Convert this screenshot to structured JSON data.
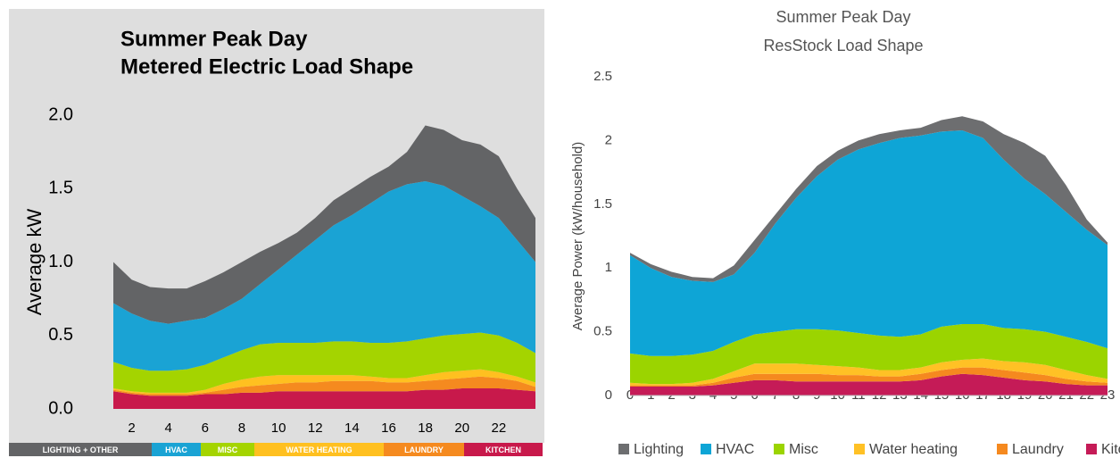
{
  "chart_data": [
    {
      "type": "stacked_area",
      "title": "Summer Peak Day",
      "subtitle": "Metered Electric Load Shape",
      "ylabel": "Average kW",
      "x": [
        1,
        2,
        3,
        4,
        5,
        6,
        7,
        8,
        9,
        10,
        11,
        12,
        13,
        14,
        15,
        16,
        17,
        18,
        19,
        20,
        21,
        22,
        23,
        24
      ],
      "xlim": [
        1,
        24
      ],
      "xticks": [
        2,
        4,
        6,
        8,
        10,
        12,
        14,
        16,
        18,
        20,
        22
      ],
      "ylim": [
        0,
        2
      ],
      "yticks": [
        {
          "value": 0,
          "label": "0.0"
        },
        {
          "value": 0.5,
          "label": "0.5"
        },
        {
          "value": 1,
          "label": "1.0"
        },
        {
          "value": 1.5,
          "label": "1.5"
        },
        {
          "value": 2,
          "label": "2.0"
        }
      ],
      "grid": false,
      "legend": "bottom",
      "legend_style": "band",
      "series": [
        {
          "name": "LIGHTING + OTHER",
          "color": "#636466",
          "values": [
            0.28,
            0.23,
            0.23,
            0.24,
            0.22,
            0.25,
            0.25,
            0.25,
            0.22,
            0.18,
            0.15,
            0.15,
            0.17,
            0.18,
            0.18,
            0.17,
            0.22,
            0.38,
            0.38,
            0.38,
            0.42,
            0.42,
            0.35,
            0.3
          ]
        },
        {
          "name": "HVAC",
          "color": "#1aa3d4",
          "values": [
            0.4,
            0.37,
            0.34,
            0.32,
            0.33,
            0.32,
            0.33,
            0.35,
            0.41,
            0.5,
            0.6,
            0.7,
            0.79,
            0.86,
            0.95,
            1.03,
            1.07,
            1.07,
            1.02,
            0.94,
            0.86,
            0.8,
            0.7,
            0.62
          ]
        },
        {
          "name": "MISC",
          "color": "#a4d400",
          "values": [
            0.18,
            0.16,
            0.15,
            0.15,
            0.16,
            0.17,
            0.18,
            0.2,
            0.22,
            0.22,
            0.22,
            0.22,
            0.23,
            0.23,
            0.23,
            0.24,
            0.25,
            0.25,
            0.25,
            0.25,
            0.25,
            0.25,
            0.23,
            0.2
          ]
        },
        {
          "name": "WATER HEATING",
          "color": "#ffc020",
          "values": [
            0.01,
            0.01,
            0.01,
            0.01,
            0.01,
            0.02,
            0.04,
            0.05,
            0.06,
            0.06,
            0.05,
            0.05,
            0.04,
            0.04,
            0.03,
            0.03,
            0.03,
            0.04,
            0.05,
            0.05,
            0.05,
            0.04,
            0.03,
            0.03
          ]
        },
        {
          "name": "LAUNDRY",
          "color": "#f58a1f",
          "values": [
            0.01,
            0.01,
            0.01,
            0.01,
            0.01,
            0.01,
            0.03,
            0.04,
            0.05,
            0.05,
            0.06,
            0.06,
            0.07,
            0.07,
            0.07,
            0.06,
            0.06,
            0.06,
            0.07,
            0.07,
            0.08,
            0.07,
            0.06,
            0.03
          ]
        },
        {
          "name": "KITCHEN",
          "color": "#c8194b",
          "values": [
            0.12,
            0.1,
            0.09,
            0.09,
            0.09,
            0.1,
            0.1,
            0.11,
            0.11,
            0.12,
            0.12,
            0.12,
            0.12,
            0.12,
            0.12,
            0.12,
            0.12,
            0.13,
            0.13,
            0.14,
            0.14,
            0.14,
            0.13,
            0.12
          ]
        }
      ]
    },
    {
      "type": "stacked_area",
      "title": "Summer Peak Day",
      "subtitle": "ResStock Load Shape",
      "ylabel": "Average Power (kW/household)",
      "x": [
        0,
        1,
        2,
        3,
        4,
        5,
        6,
        7,
        8,
        9,
        10,
        11,
        12,
        13,
        14,
        15,
        16,
        17,
        18,
        19,
        20,
        21,
        22,
        23
      ],
      "xlim": [
        0,
        23
      ],
      "xticks": [
        0,
        1,
        2,
        3,
        4,
        5,
        6,
        7,
        8,
        9,
        10,
        11,
        12,
        13,
        14,
        15,
        16,
        17,
        18,
        19,
        20,
        21,
        22,
        23
      ],
      "ylim": [
        0,
        2.5
      ],
      "yticks": [
        0,
        0.5,
        1,
        1.5,
        2,
        2.5
      ],
      "grid": false,
      "legend": "bottom",
      "legend_style": "swatch",
      "series": [
        {
          "name": "Lighting",
          "color": "#6d6e70",
          "values": [
            0.02,
            0.03,
            0.04,
            0.03,
            0.03,
            0.07,
            0.1,
            0.07,
            0.07,
            0.08,
            0.07,
            0.07,
            0.07,
            0.06,
            0.06,
            0.09,
            0.11,
            0.13,
            0.2,
            0.28,
            0.3,
            0.21,
            0.08,
            0.02
          ]
        },
        {
          "name": "HVAC",
          "color": "#0ea5d6",
          "values": [
            0.77,
            0.69,
            0.62,
            0.58,
            0.54,
            0.53,
            0.64,
            0.85,
            1.03,
            1.2,
            1.34,
            1.44,
            1.51,
            1.56,
            1.56,
            1.53,
            1.52,
            1.46,
            1.32,
            1.18,
            1.08,
            0.98,
            0.88,
            0.81
          ]
        },
        {
          "name": "Misc",
          "color": "#9bd400",
          "values": [
            0.23,
            0.22,
            0.22,
            0.22,
            0.22,
            0.23,
            0.23,
            0.25,
            0.27,
            0.28,
            0.28,
            0.27,
            0.27,
            0.26,
            0.26,
            0.28,
            0.28,
            0.27,
            0.26,
            0.26,
            0.26,
            0.26,
            0.26,
            0.24
          ]
        },
        {
          "name": "Water heating",
          "color": "#ffc125",
          "values": [
            0.02,
            0.01,
            0.01,
            0.02,
            0.03,
            0.05,
            0.08,
            0.08,
            0.08,
            0.07,
            0.07,
            0.06,
            0.05,
            0.05,
            0.05,
            0.06,
            0.06,
            0.07,
            0.07,
            0.08,
            0.08,
            0.07,
            0.05,
            0.03
          ]
        },
        {
          "name": "Laundry",
          "color": "#f5891f",
          "values": [
            0.01,
            0.01,
            0.01,
            0.01,
            0.02,
            0.04,
            0.05,
            0.05,
            0.06,
            0.06,
            0.05,
            0.05,
            0.04,
            0.04,
            0.05,
            0.05,
            0.05,
            0.06,
            0.06,
            0.06,
            0.05,
            0.04,
            0.03,
            0.02
          ]
        },
        {
          "name": "Kitchen",
          "color": "#c51b57",
          "values": [
            0.07,
            0.07,
            0.07,
            0.07,
            0.08,
            0.1,
            0.12,
            0.12,
            0.11,
            0.11,
            0.11,
            0.11,
            0.11,
            0.11,
            0.12,
            0.15,
            0.17,
            0.16,
            0.14,
            0.12,
            0.11,
            0.09,
            0.08,
            0.08
          ]
        }
      ]
    }
  ]
}
